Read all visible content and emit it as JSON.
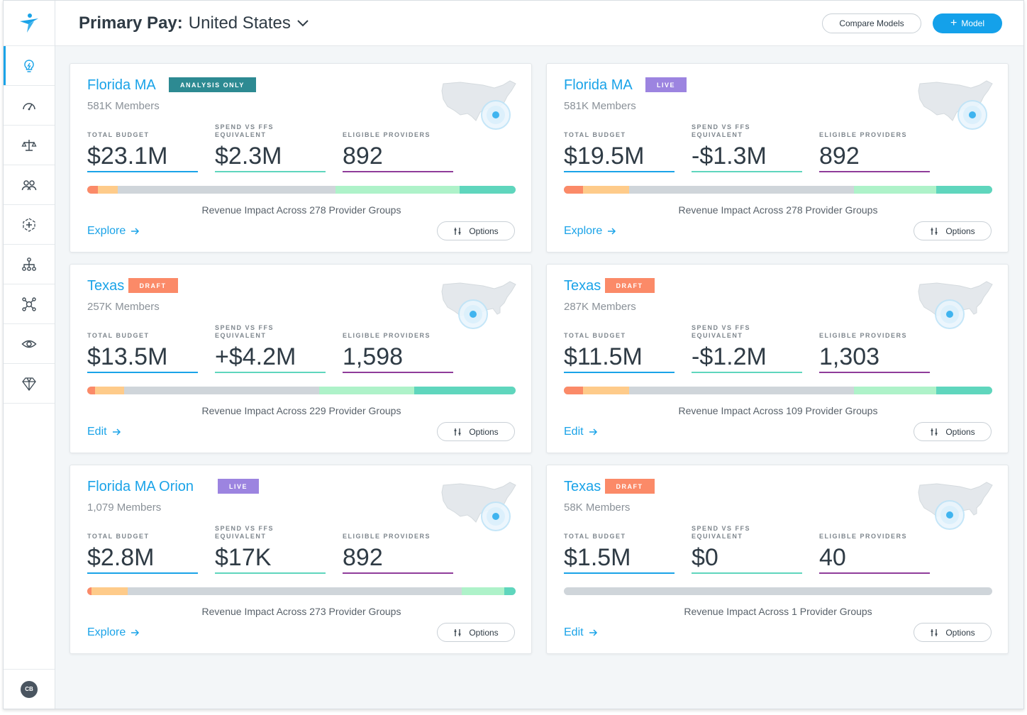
{
  "header": {
    "title_bold": "Primary Pay:",
    "title_value": "United States",
    "compare_label": "Compare Models",
    "model_label": "Model"
  },
  "sidebar": {
    "items": [
      {
        "icon": "lightbulb-icon",
        "active": true
      },
      {
        "icon": "speedometer-icon"
      },
      {
        "icon": "scales-icon"
      },
      {
        "icon": "people-icon"
      },
      {
        "icon": "medical-cross-icon"
      },
      {
        "icon": "hierarchy-icon"
      },
      {
        "icon": "network-icon"
      },
      {
        "icon": "eye-icon"
      },
      {
        "icon": "diamond-icon"
      }
    ],
    "avatar_initials": "CB"
  },
  "colors": {
    "accent": "#1aa3e8",
    "analysis_badge": "#2d8a92",
    "live_badge": "#9c84e0",
    "draft_badge": "#fb8a68",
    "budget_line": "#1aa3e8",
    "spend_line": "#5fd6bd",
    "providers_line": "#8f3c9a"
  },
  "labels": {
    "total_budget": "TOTAL BUDGET",
    "spend_vs_ffs": "SPEND VS FFS EQUIVALENT",
    "eligible_providers": "ELIGIBLE PROVIDERS",
    "options": "Options"
  },
  "cards": [
    {
      "title": "Florida MA",
      "badge": "ANALYSIS ONLY",
      "badge_type": "analysis",
      "members": "581K Members",
      "total_budget": "$23.1M",
      "spend_vs_ffs": "$2.3M",
      "eligible_providers": "892",
      "revenue_text": "Revenue Impact Across 278 Provider Groups",
      "link": "Explore",
      "map_dot": "east",
      "impact_segments": [
        0.025,
        0.047,
        0.507,
        0.29,
        0.131
      ]
    },
    {
      "title": "Florida MA",
      "badge": "LIVE",
      "badge_type": "live",
      "members": "581K Members",
      "total_budget": "$19.5M",
      "spend_vs_ffs": "-$1.3M",
      "eligible_providers": "892",
      "revenue_text": "Revenue Impact Across 278 Provider Groups",
      "link": "Explore",
      "map_dot": "east",
      "impact_segments": [
        0.045,
        0.108,
        0.525,
        0.192,
        0.13
      ]
    },
    {
      "title": "Texas",
      "badge": "DRAFT",
      "badge_type": "draft",
      "members": "257K Members",
      "total_budget": "$13.5M",
      "spend_vs_ffs": "+$4.2M",
      "eligible_providers": "1,598",
      "revenue_text": "Revenue Impact Across 229 Provider Groups",
      "link": "Edit",
      "map_dot": "south",
      "impact_segments": [
        0.018,
        0.068,
        0.455,
        0.222,
        0.237
      ]
    },
    {
      "title": "Texas",
      "badge": "DRAFT",
      "badge_type": "draft",
      "members": "287K Members",
      "total_budget": "$11.5M",
      "spend_vs_ffs": "-$1.2M",
      "eligible_providers": "1,303",
      "revenue_text": "Revenue Impact Across 109 Provider Groups",
      "link": "Edit",
      "map_dot": "south",
      "impact_segments": [
        0.045,
        0.108,
        0.525,
        0.192,
        0.13
      ]
    },
    {
      "title": "Florida MA Orion",
      "badge": "LIVE",
      "badge_type": "live",
      "members": "1,079 Members",
      "total_budget": "$2.8M",
      "spend_vs_ffs": "$17K",
      "eligible_providers": "892",
      "revenue_text": "Revenue Impact Across 273 Provider Groups",
      "link": "Explore",
      "map_dot": "east",
      "impact_segments": [
        0.01,
        0.085,
        0.78,
        0.098,
        0.027
      ]
    },
    {
      "title": "Texas",
      "badge": "DRAFT",
      "badge_type": "draft",
      "members": "58K Members",
      "total_budget": "$1.5M",
      "spend_vs_ffs": "$0",
      "eligible_providers": "40",
      "revenue_text": "Revenue Impact Across 1 Provider Groups",
      "link": "Edit",
      "map_dot": "south",
      "impact_segments": [
        0,
        0,
        1,
        0,
        0
      ]
    }
  ],
  "impact_colors": [
    "#fb8a68",
    "#fecb8a",
    "#cfd5da",
    "#aef2c9",
    "#5fd6bd"
  ]
}
